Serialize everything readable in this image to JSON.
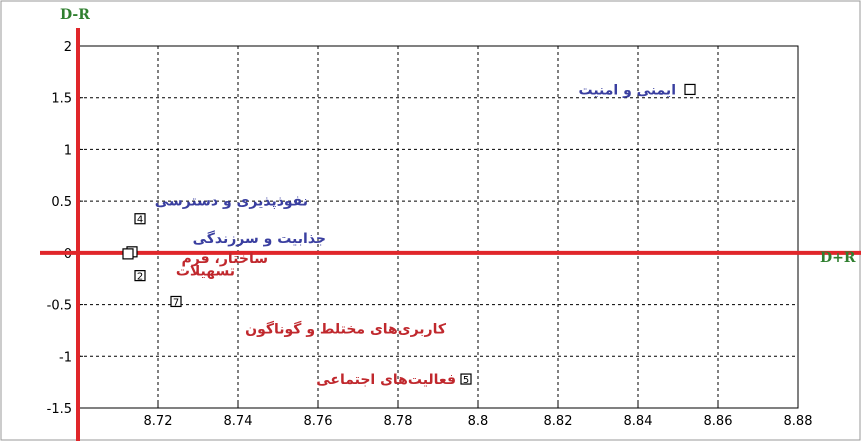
{
  "chart_data": {
    "type": "scatter",
    "xlabel": "D+R",
    "ylabel": "D-R",
    "xlim": [
      8.7,
      8.88
    ],
    "ylim": [
      -1.5,
      2
    ],
    "xticks": [
      8.72,
      8.74,
      8.76,
      8.78,
      8.8,
      8.82,
      8.84,
      8.86,
      8.88
    ],
    "yticks": [
      -1.5,
      -1,
      -0.5,
      0,
      0.5,
      1,
      1.5,
      2
    ],
    "xtick_labels": [
      "8.72",
      "8.74",
      "8.76",
      "8.78",
      "8.8",
      "8.82",
      "8.84",
      "8.86",
      "8.88"
    ],
    "ytick_labels": [
      "-1.5",
      "-1",
      "-0.5",
      "0",
      "0.5",
      "1",
      "1.5",
      "2"
    ],
    "grid": true,
    "points": [
      {
        "id": "",
        "x": 8.853,
        "y": 1.58,
        "label": "ایمنی و امنیت",
        "group": "cause",
        "color": "#3a3fa0"
      },
      {
        "id": "4",
        "x": 8.7155,
        "y": 0.33,
        "label": "نفوذپذیری و دسترسی",
        "group": "cause",
        "color": "#3a3fa0"
      },
      {
        "id": "",
        "x": 8.7135,
        "y": 0.01,
        "label": "جذابیت و سرزندگی",
        "group": "cause",
        "color": "#3a3fa0"
      },
      {
        "id": "",
        "x": 8.7125,
        "y": -0.01,
        "label": "ساختار، فرم",
        "group": "effect",
        "color": "#c0282d"
      },
      {
        "id": "2",
        "x": 8.7155,
        "y": -0.22,
        "label": "تسهیلات",
        "group": "effect",
        "color": "#c0282d"
      },
      {
        "id": "7",
        "x": 8.7245,
        "y": -0.47,
        "label": "کاربری‌های مختلط و گوناگون",
        "group": "effect",
        "color": "#c0282d"
      },
      {
        "id": "5",
        "x": 8.797,
        "y": -1.22,
        "label": "فعالیت‌های اجتماعی",
        "group": "effect",
        "color": "#c0282d"
      }
    ],
    "axis_line_color": "#e0262a"
  }
}
